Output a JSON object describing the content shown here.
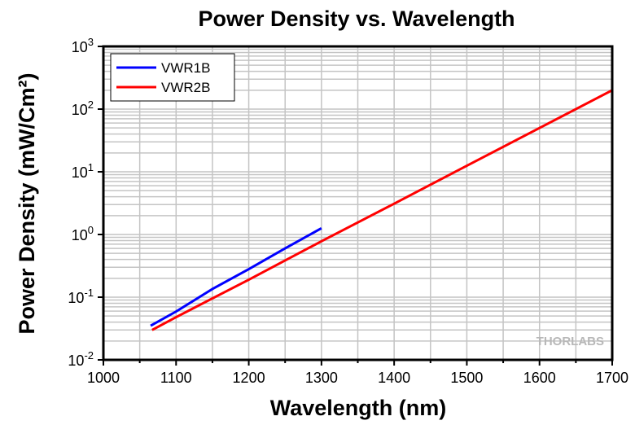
{
  "chart_data": {
    "type": "line",
    "title": "Power Density vs. Wavelength",
    "xlabel": "Wavelength (nm)",
    "ylabel": "Power Density (mW/Cm²)",
    "xlim": [
      1000,
      1700
    ],
    "ylim": [
      0.01,
      1000
    ],
    "yscale": "log",
    "grid": true,
    "legend_position": "top-left",
    "x_ticks": [
      "1000",
      "1100",
      "1200",
      "1300",
      "1400",
      "1500",
      "1600",
      "1700"
    ],
    "y_ticks": [
      {
        "base": "10",
        "exp": "-2"
      },
      {
        "base": "10",
        "exp": "-1"
      },
      {
        "base": "10",
        "exp": "0"
      },
      {
        "base": "10",
        "exp": "1"
      },
      {
        "base": "10",
        "exp": "2"
      },
      {
        "base": "10",
        "exp": "3"
      }
    ],
    "series": [
      {
        "name": "VWR1B",
        "color": "#0000ff",
        "x": [
          1065,
          1100,
          1150,
          1200,
          1250,
          1300
        ],
        "y": [
          0.035,
          0.059,
          0.135,
          0.28,
          0.6,
          1.26
        ]
      },
      {
        "name": "VWR2B",
        "color": "#ff0000",
        "x": [
          1067,
          1100,
          1200,
          1300,
          1400,
          1500,
          1600,
          1700
        ],
        "y": [
          0.03,
          0.048,
          0.19,
          0.78,
          3.1,
          12.5,
          50,
          200
        ]
      }
    ]
  },
  "watermark": "THORLABS"
}
